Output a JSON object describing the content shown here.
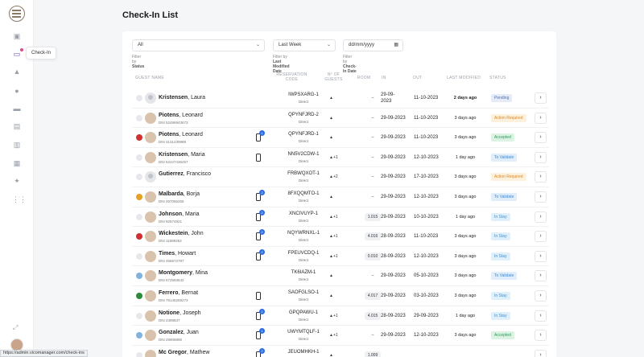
{
  "sidebar": {
    "tooltip": "Check-In",
    "icons": [
      "home-icon",
      "checkin-icon",
      "bell-icon",
      "user-icon",
      "bed-icon",
      "card-icon",
      "id-icon",
      "chat-icon",
      "sparkle-icon",
      "grid-icon"
    ]
  },
  "page": {
    "title": "Check-In List"
  },
  "filters": {
    "status": {
      "value": "All",
      "label_prefix": "Filter by",
      "label_field": "Status"
    },
    "modified": {
      "value": "Last Week",
      "label_prefix": "Filter by",
      "label_field": "Last Modified Date"
    },
    "checkin": {
      "value": "dd/mm/yyyy",
      "label_prefix": "Filter by",
      "label_field": "Check-In Date"
    }
  },
  "columns": {
    "guest": "GUEST NAME",
    "code": "RESERVATION CODE",
    "guests": "Nº OF GUESTS",
    "room": "ROOM",
    "in": "IN",
    "out": "OUT",
    "modified": "LAST MODIFIED",
    "status": "STATUS"
  },
  "rows": [
    {
      "last": "Kristensen",
      "first": ", Laura",
      "dni": "",
      "code": "IWPSXARG-1",
      "channel": "Direct",
      "guests": "",
      "room": "–",
      "in": "29-09-2023",
      "out": "11-10-2023",
      "modified": "2 days ago",
      "status": "Pending",
      "kind": "pending",
      "phone": false,
      "badge": "",
      "bold": true
    },
    {
      "last": "Piotens",
      "first": ", Leonard",
      "dni": "DNI 52496943673",
      "code": "QPYNFJRD-2",
      "channel": "Direct",
      "guests": "",
      "room": "–",
      "in": "29-09-2023",
      "out": "11-10-2023",
      "modified": "3 days ago",
      "status": "Action Required",
      "kind": "action",
      "phone": false,
      "badge": "",
      "bold": false
    },
    {
      "last": "Piotens",
      "first": ", Leonard",
      "dni": "DNI 3131239988",
      "code": "QPYNFJRD-1",
      "channel": "Direct",
      "guests": "",
      "room": "–",
      "in": "29-09-2023",
      "out": "11-10-2023",
      "modified": "3 days ago",
      "status": "Accepted",
      "kind": "accepted",
      "phone": true,
      "badge": "1",
      "bold": false
    },
    {
      "last": "Kristensen",
      "first": ", Maria",
      "dni": "DNI 52427436257",
      "code": "NN5V2CDW-1",
      "channel": "Direct",
      "guests": "+1",
      "room": "–",
      "in": "29-09-2023",
      "out": "12-10-2023",
      "modified": "1 day ago",
      "status": "To Validate",
      "kind": "validate",
      "phone": true,
      "badge": "",
      "bold": false
    },
    {
      "last": "Gutierrez",
      "first": ", Francisco",
      "dni": "",
      "code": "FRBWQXOT-1",
      "channel": "Direct",
      "guests": "+2",
      "room": "–",
      "in": "29-09-2023",
      "out": "17-10-2023",
      "modified": "3 days ago",
      "status": "Action Required",
      "kind": "action",
      "phone": false,
      "badge": "",
      "bold": false
    },
    {
      "last": "Malbarda",
      "first": ", Borja",
      "dni": "DNI 267066255",
      "code": "8FXQQMTO-1",
      "channel": "Direct",
      "guests": "",
      "room": "–",
      "in": "29-09-2023",
      "out": "12-10-2023",
      "modified": "3 days ago",
      "status": "To Validate",
      "kind": "validate",
      "phone": true,
      "badge": "2",
      "bold": false
    },
    {
      "last": "Johnson",
      "first": ", Maria",
      "dni": "DNI 92574921",
      "code": "XNCIVUYP-1",
      "channel": "Direct",
      "guests": "+1",
      "room": "1.015",
      "in": "29-09-2023",
      "out": "10-10-2023",
      "modified": "1 day ago",
      "status": "In Stay",
      "kind": "instay",
      "phone": true,
      "badge": "2",
      "bold": false
    },
    {
      "last": "Wickestein",
      "first": ", John",
      "dni": "DNI 11998353",
      "code": "NQYWRNXL-1",
      "channel": "Direct",
      "guests": "+1",
      "room": "4.016",
      "in": "28-09-2023",
      "out": "11-10-2023",
      "modified": "3 days ago",
      "status": "In Stay",
      "kind": "instay",
      "phone": true,
      "badge": "2",
      "bold": false
    },
    {
      "last": "Times",
      "first": ", Howart",
      "dni": "DNI 456672787",
      "code": "FPEUVCDQ-1",
      "channel": "Direct",
      "guests": "+1",
      "room": "0.010",
      "in": "28-09-2023",
      "out": "12-10-2023",
      "modified": "3 days ago",
      "status": "In Stay",
      "kind": "instay",
      "phone": true,
      "badge": "2",
      "bold": false
    },
    {
      "last": "Montgomery",
      "first": ", Mina",
      "dni": "DNI 572593542",
      "code": "TK6IAZM-1",
      "channel": "Direct",
      "guests": "",
      "room": "–",
      "in": "29-09-2023",
      "out": "05-10-2023",
      "modified": "3 days ago",
      "status": "To Validate",
      "kind": "validate",
      "phone": false,
      "badge": "",
      "bold": false
    },
    {
      "last": "Ferrero",
      "first": ", Bernat",
      "dni": "DNI 76145269273",
      "code": "SAOFGLSO-1",
      "channel": "Direct",
      "guests": "",
      "room": "4.017",
      "in": "29-09-2023",
      "out": "03-10-2023",
      "modified": "3 days ago",
      "status": "In Stay",
      "kind": "instay",
      "phone": true,
      "badge": "",
      "bold": false
    },
    {
      "last": "Notione",
      "first": ", Joseph",
      "dni": "DNI 2398837",
      "code": "GPQPAWU-1",
      "channel": "Direct",
      "guests": "+1",
      "room": "4.015",
      "in": "28-09-2023",
      "out": "29-09-2023",
      "modified": "1 day ago",
      "status": "In Stay",
      "kind": "instay",
      "phone": true,
      "badge": "2",
      "bold": false
    },
    {
      "last": "Gonzalez",
      "first": ", Juan",
      "dni": "DNI 28906896",
      "code": "UWYMTQLF-1",
      "channel": "Direct",
      "guests": "+1",
      "room": "–",
      "in": "29-09-2023",
      "out": "12-10-2023",
      "modified": "3 days ago",
      "status": "Accepted",
      "kind": "accepted",
      "phone": true,
      "badge": "1",
      "bold": false
    },
    {
      "last": "Mc Gregor",
      "first": ", Mathew",
      "dni": "",
      "code": "JEUOMHKH-1",
      "channel": "",
      "guests": "",
      "room": "1.009",
      "in": "",
      "out": "",
      "modified": "",
      "status": "",
      "kind": "",
      "phone": true,
      "badge": "2",
      "bold": false
    }
  ],
  "statusbar": {
    "url": "https://admin.vicomanager.com/check-ins"
  }
}
